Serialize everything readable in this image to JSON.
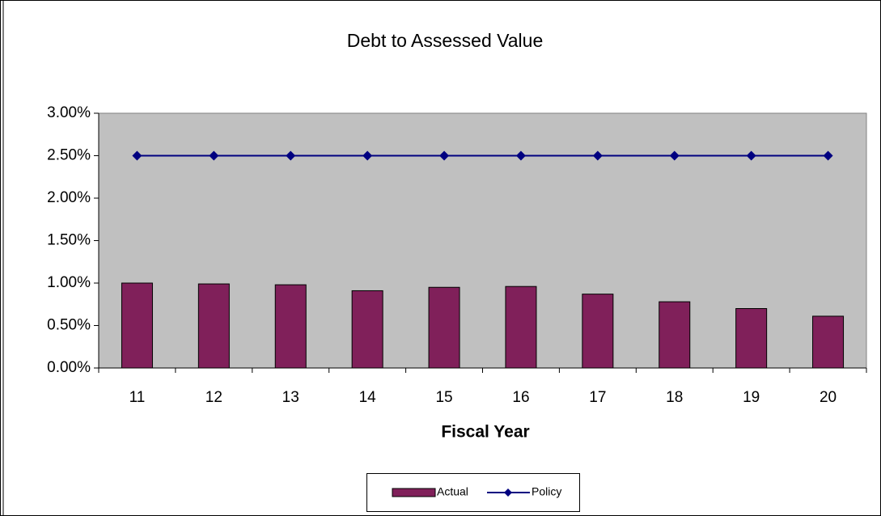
{
  "chart_data": {
    "type": "bar",
    "title": "Debt to Assessed Value",
    "x_label": "Fiscal Year",
    "categories": [
      "11",
      "12",
      "13",
      "14",
      "15",
      "16",
      "17",
      "18",
      "19",
      "20"
    ],
    "series": [
      {
        "name": "Actual",
        "type": "bar",
        "color": "#80205a",
        "values": [
          1.0,
          0.99,
          0.98,
          0.91,
          0.95,
          0.96,
          0.87,
          0.78,
          0.7,
          0.61
        ]
      },
      {
        "name": "Policy",
        "type": "line",
        "color": "#000080",
        "values": [
          2.5,
          2.5,
          2.5,
          2.5,
          2.5,
          2.5,
          2.5,
          2.5,
          2.5,
          2.5
        ]
      }
    ],
    "ylim": [
      0,
      3
    ],
    "yticks": [
      {
        "value": 0,
        "label": "0.00%"
      },
      {
        "value": 0.5,
        "label": "0.50%"
      },
      {
        "value": 1,
        "label": "1.00%"
      },
      {
        "value": 1.5,
        "label": "1.50%"
      },
      {
        "value": 2,
        "label": "2.00%"
      },
      {
        "value": 2.5,
        "label": "2.50%"
      },
      {
        "value": 3,
        "label": "3.00%"
      }
    ],
    "legend": "bottom",
    "plot_background": "#c0c0c0"
  }
}
